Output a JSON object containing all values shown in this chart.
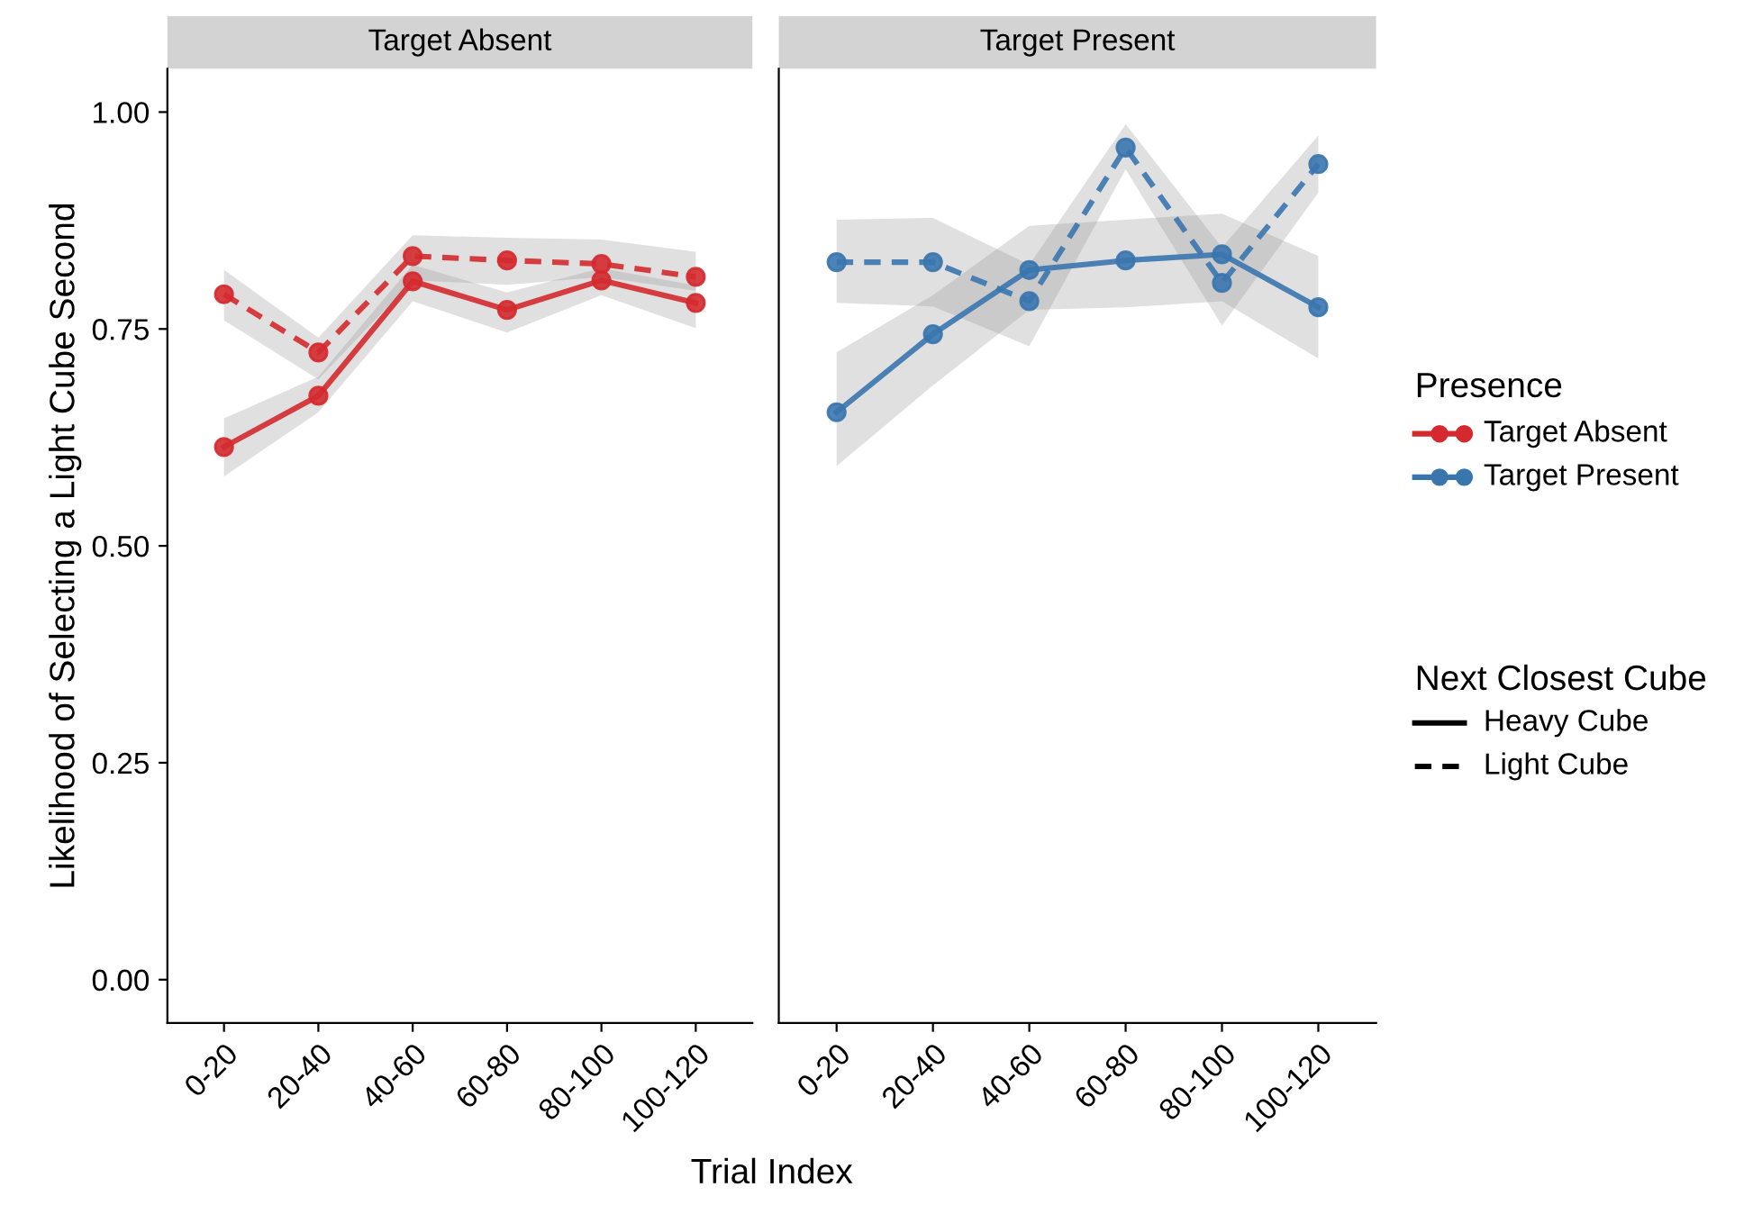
{
  "chart_data": [
    {
      "type": "line",
      "title": "Target Absent",
      "xlabel": "Trial Index",
      "ylabel": "Likelihood of Selecting a Light Cube Second",
      "legend_title": "Presence",
      "grid": false,
      "marker": "circle",
      "categories": [
        "0-20",
        "20-40",
        "40-60",
        "60-80",
        "80-100",
        "100-120"
      ],
      "ylim": [
        -0.05,
        1.05
      ],
      "yticks": [
        {
          "value": 0,
          "label": "0.00"
        },
        {
          "value": 0.25,
          "label": "0.25"
        },
        {
          "value": 0.5,
          "label": "0.50"
        },
        {
          "value": 0.75,
          "label": "0.75"
        },
        {
          "value": 1,
          "label": "1.00"
        }
      ],
      "series": [
        {
          "color": "#d42a2f",
          "line_style": "solid",
          "values": [
            0.614,
            0.673,
            0.805,
            0.772,
            0.806,
            0.78
          ],
          "lower": [
            0.58,
            0.654,
            0.782,
            0.746,
            0.789,
            0.751
          ],
          "upper": [
            0.647,
            0.695,
            0.824,
            0.792,
            0.82,
            0.8
          ]
        },
        {
          "color": "#d42a2f",
          "line_style": "dashed",
          "values": [
            0.79,
            0.723,
            0.834,
            0.829,
            0.825,
            0.81
          ],
          "lower": [
            0.76,
            0.692,
            0.806,
            0.801,
            0.81,
            0.794
          ],
          "upper": [
            0.818,
            0.74,
            0.858,
            0.855,
            0.853,
            0.839
          ]
        }
      ]
    },
    {
      "type": "line",
      "title": "Target Present",
      "legend_title": "Next Closest Cube",
      "annotations": [
        "Heavy Cube",
        "Light Cube"
      ],
      "grid": false,
      "marker": "circle",
      "tick_labels": "x",
      "categories": [
        "0-20",
        "20-40",
        "40-60",
        "60-80",
        "80-100",
        "100-120"
      ],
      "ylim": [
        -0.05,
        1.05
      ],
      "series": [
        {
          "color": "#3a76ae",
          "line_style": "solid",
          "values": [
            0.654,
            0.744,
            0.818,
            0.829,
            0.836,
            0.775
          ],
          "lower": [
            0.592,
            0.685,
            0.772,
            0.775,
            0.782,
            0.716
          ],
          "upper": [
            0.723,
            0.789,
            0.869,
            0.876,
            0.883,
            0.834
          ]
        },
        {
          "color": "#3a76ae",
          "line_style": "dashed",
          "values": [
            0.827,
            0.827,
            0.782,
            0.959,
            0.803,
            0.94
          ],
          "lower": [
            0.78,
            0.776,
            0.73,
            0.934,
            0.754,
            0.907
          ],
          "upper": [
            0.876,
            0.878,
            0.824,
            0.986,
            0.844,
            0.973
          ]
        }
      ]
    }
  ]
}
